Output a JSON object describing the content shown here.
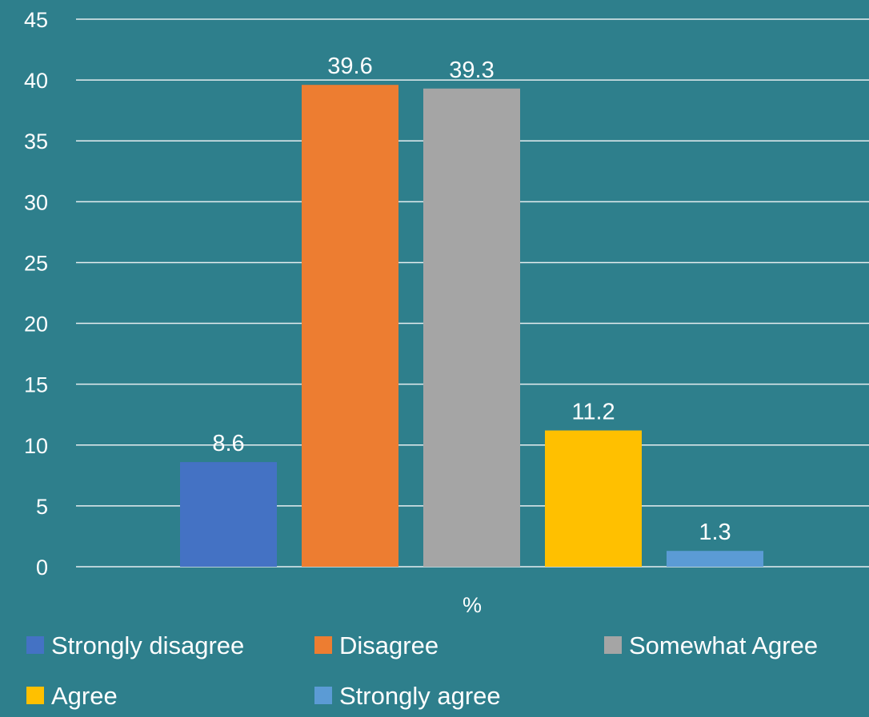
{
  "chart_data": {
    "type": "bar",
    "categories": [
      "%"
    ],
    "series": [
      {
        "name": "Strongly disagree",
        "values": [
          8.6
        ],
        "color": "#4472c4"
      },
      {
        "name": "Disagree",
        "values": [
          39.6
        ],
        "color": "#ed7d31"
      },
      {
        "name": "Somewhat Agree",
        "values": [
          39.3
        ],
        "color": "#a5a5a5"
      },
      {
        "name": "Agree",
        "values": [
          11.2
        ],
        "color": "#ffc000"
      },
      {
        "name": "Strongly agree",
        "values": [
          1.3
        ],
        "color": "#5b9bd5"
      }
    ],
    "data_labels": [
      "8.6",
      "39.6",
      "39.3",
      "11.2",
      "1.3"
    ],
    "y_ticks": [
      "0",
      "5",
      "10",
      "15",
      "20",
      "25",
      "30",
      "35",
      "40",
      "45"
    ],
    "ylim": [
      0,
      45
    ],
    "grid": true,
    "legend_position": "bottom",
    "background_color": "#2e7f8c",
    "text_color": "#ffffff"
  }
}
